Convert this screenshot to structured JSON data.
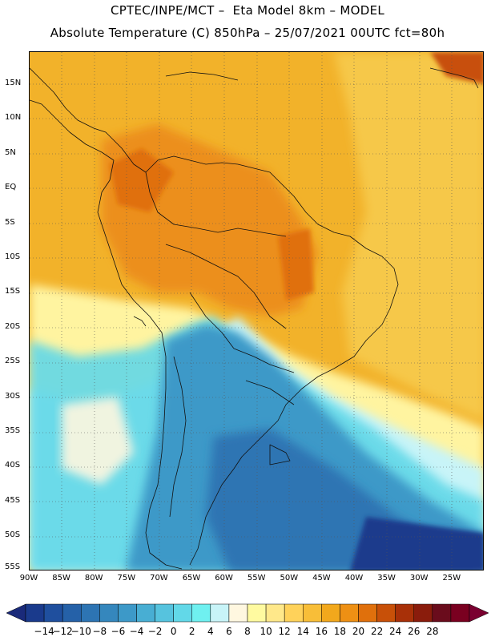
{
  "title": {
    "line1": "CPTEC/INPE/MCT –  Eta Model 8km – MODEL",
    "line2": "Absolute Temperature (C) 850hPa – 25/07/2021 00UTC fct=80h"
  },
  "map": {
    "lat_labels": [
      "15N",
      "10N",
      "5N",
      "EQ",
      "5S",
      "10S",
      "15S",
      "20S",
      "25S",
      "30S",
      "35S",
      "40S",
      "45S",
      "50S",
      "55S"
    ],
    "lon_labels": [
      "90W",
      "85W",
      "80W",
      "75W",
      "70W",
      "65W",
      "60W",
      "55W",
      "50W",
      "45W",
      "40W",
      "35W",
      "30W",
      "25W"
    ]
  },
  "colorbar": {
    "labels": [
      "-14",
      "-12",
      "-10",
      "-8",
      "-6",
      "-4",
      "-2",
      "0",
      "2",
      "4",
      "6",
      "8",
      "10",
      "12",
      "14",
      "16",
      "18",
      "20",
      "22",
      "24",
      "26",
      "28"
    ],
    "colors": [
      "#1a3a8c",
      "#1f4f9e",
      "#2561a8",
      "#2d74b3",
      "#3587bd",
      "#3d99c8",
      "#48aed3",
      "#56c3de",
      "#62d8e8",
      "#6ff0f0",
      "#c8f4f8",
      "#fff7e0",
      "#fffaa0",
      "#ffe88a",
      "#ffd25a",
      "#f8be38",
      "#f2a81c",
      "#ee9014",
      "#e0700c",
      "#c85008",
      "#a83008",
      "#8a1c0c",
      "#6a0c1c",
      "#7a0020"
    ],
    "low_end_color": "#1a2a7a",
    "high_end_color": "#7a0030"
  }
}
